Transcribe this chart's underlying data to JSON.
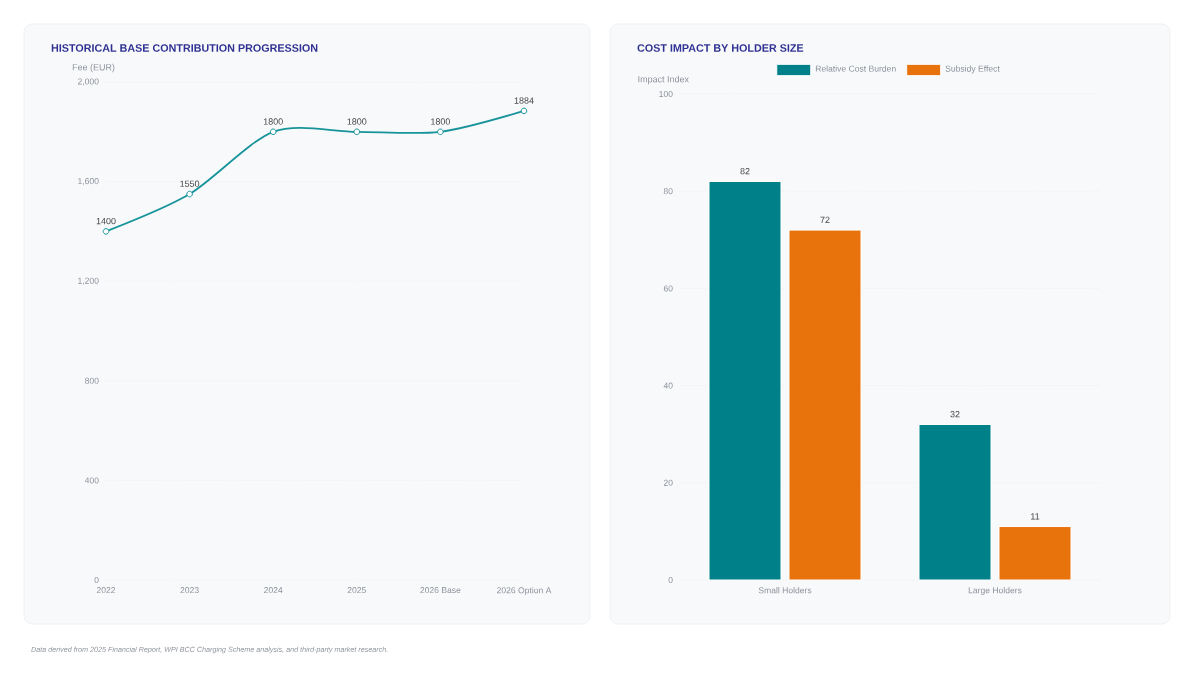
{
  "chart_data": [
    {
      "type": "line",
      "title": "HISTORICAL BASE CONTRIBUTION PROGRESSION",
      "ylabel": "Fee (EUR)",
      "categories": [
        "2022",
        "2023",
        "2024",
        "2025",
        "2026 Base",
        "2026 Option A"
      ],
      "series": [
        {
          "color": "#17949a",
          "values": [
            1400,
            1550,
            1800,
            1800,
            1800,
            1884
          ]
        }
      ],
      "ylim": [
        0,
        2000
      ],
      "yticks": [
        0,
        {
          "value": 400,
          "label": "400"
        },
        {
          "value": 800,
          "label": "800"
        },
        {
          "value": 1200,
          "label": "1,200"
        },
        {
          "value": 1600,
          "label": "1,600"
        },
        {
          "value": 2000,
          "label": "2,000"
        }
      ],
      "grid": "y",
      "marker": "circle",
      "data_labels": true,
      "legend": false,
      "annotations": [
        "Data derived from 2025 Financial Report, WPI BCC Charging Scheme analysis, and third-party market research."
      ]
    },
    {
      "type": "bar",
      "title": "COST IMPACT BY HOLDER SIZE",
      "ylabel": "Impact Index",
      "categories": [
        "Small Holders",
        "Large Holders"
      ],
      "series": [
        {
          "name": "Relative Cost Burden",
          "color": "#00818a",
          "values": [
            82,
            32
          ]
        },
        {
          "name": "Subsidy Effect",
          "color": "#e8730c",
          "values": [
            72,
            11
          ]
        }
      ],
      "ylim": [
        0,
        100
      ],
      "yticks": [
        0,
        20,
        40,
        60,
        80,
        100
      ],
      "grid": "y",
      "legend": "top",
      "data_labels": true
    }
  ]
}
